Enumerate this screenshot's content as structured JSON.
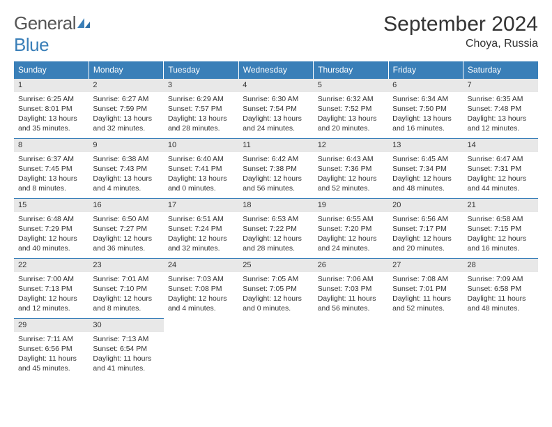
{
  "logo": {
    "general": "General",
    "blue": "Blue"
  },
  "header": {
    "title": "September 2024",
    "location": "Choya, Russia"
  },
  "colors": {
    "brand": "#3a7fb8",
    "header_bg": "#3a7fb8",
    "header_text": "#ffffff",
    "daynum_bg": "#e8e8e8",
    "text": "#333333",
    "row_border": "#3a7fb8",
    "background": "#ffffff"
  },
  "weekdays": [
    "Sunday",
    "Monday",
    "Tuesday",
    "Wednesday",
    "Thursday",
    "Friday",
    "Saturday"
  ],
  "weeks": [
    [
      {
        "n": "1",
        "sr": "Sunrise: 6:25 AM",
        "ss": "Sunset: 8:01 PM",
        "dl": "Daylight: 13 hours and 35 minutes."
      },
      {
        "n": "2",
        "sr": "Sunrise: 6:27 AM",
        "ss": "Sunset: 7:59 PM",
        "dl": "Daylight: 13 hours and 32 minutes."
      },
      {
        "n": "3",
        "sr": "Sunrise: 6:29 AM",
        "ss": "Sunset: 7:57 PM",
        "dl": "Daylight: 13 hours and 28 minutes."
      },
      {
        "n": "4",
        "sr": "Sunrise: 6:30 AM",
        "ss": "Sunset: 7:54 PM",
        "dl": "Daylight: 13 hours and 24 minutes."
      },
      {
        "n": "5",
        "sr": "Sunrise: 6:32 AM",
        "ss": "Sunset: 7:52 PM",
        "dl": "Daylight: 13 hours and 20 minutes."
      },
      {
        "n": "6",
        "sr": "Sunrise: 6:34 AM",
        "ss": "Sunset: 7:50 PM",
        "dl": "Daylight: 13 hours and 16 minutes."
      },
      {
        "n": "7",
        "sr": "Sunrise: 6:35 AM",
        "ss": "Sunset: 7:48 PM",
        "dl": "Daylight: 13 hours and 12 minutes."
      }
    ],
    [
      {
        "n": "8",
        "sr": "Sunrise: 6:37 AM",
        "ss": "Sunset: 7:45 PM",
        "dl": "Daylight: 13 hours and 8 minutes."
      },
      {
        "n": "9",
        "sr": "Sunrise: 6:38 AM",
        "ss": "Sunset: 7:43 PM",
        "dl": "Daylight: 13 hours and 4 minutes."
      },
      {
        "n": "10",
        "sr": "Sunrise: 6:40 AM",
        "ss": "Sunset: 7:41 PM",
        "dl": "Daylight: 13 hours and 0 minutes."
      },
      {
        "n": "11",
        "sr": "Sunrise: 6:42 AM",
        "ss": "Sunset: 7:38 PM",
        "dl": "Daylight: 12 hours and 56 minutes."
      },
      {
        "n": "12",
        "sr": "Sunrise: 6:43 AM",
        "ss": "Sunset: 7:36 PM",
        "dl": "Daylight: 12 hours and 52 minutes."
      },
      {
        "n": "13",
        "sr": "Sunrise: 6:45 AM",
        "ss": "Sunset: 7:34 PM",
        "dl": "Daylight: 12 hours and 48 minutes."
      },
      {
        "n": "14",
        "sr": "Sunrise: 6:47 AM",
        "ss": "Sunset: 7:31 PM",
        "dl": "Daylight: 12 hours and 44 minutes."
      }
    ],
    [
      {
        "n": "15",
        "sr": "Sunrise: 6:48 AM",
        "ss": "Sunset: 7:29 PM",
        "dl": "Daylight: 12 hours and 40 minutes."
      },
      {
        "n": "16",
        "sr": "Sunrise: 6:50 AM",
        "ss": "Sunset: 7:27 PM",
        "dl": "Daylight: 12 hours and 36 minutes."
      },
      {
        "n": "17",
        "sr": "Sunrise: 6:51 AM",
        "ss": "Sunset: 7:24 PM",
        "dl": "Daylight: 12 hours and 32 minutes."
      },
      {
        "n": "18",
        "sr": "Sunrise: 6:53 AM",
        "ss": "Sunset: 7:22 PM",
        "dl": "Daylight: 12 hours and 28 minutes."
      },
      {
        "n": "19",
        "sr": "Sunrise: 6:55 AM",
        "ss": "Sunset: 7:20 PM",
        "dl": "Daylight: 12 hours and 24 minutes."
      },
      {
        "n": "20",
        "sr": "Sunrise: 6:56 AM",
        "ss": "Sunset: 7:17 PM",
        "dl": "Daylight: 12 hours and 20 minutes."
      },
      {
        "n": "21",
        "sr": "Sunrise: 6:58 AM",
        "ss": "Sunset: 7:15 PM",
        "dl": "Daylight: 12 hours and 16 minutes."
      }
    ],
    [
      {
        "n": "22",
        "sr": "Sunrise: 7:00 AM",
        "ss": "Sunset: 7:13 PM",
        "dl": "Daylight: 12 hours and 12 minutes."
      },
      {
        "n": "23",
        "sr": "Sunrise: 7:01 AM",
        "ss": "Sunset: 7:10 PM",
        "dl": "Daylight: 12 hours and 8 minutes."
      },
      {
        "n": "24",
        "sr": "Sunrise: 7:03 AM",
        "ss": "Sunset: 7:08 PM",
        "dl": "Daylight: 12 hours and 4 minutes."
      },
      {
        "n": "25",
        "sr": "Sunrise: 7:05 AM",
        "ss": "Sunset: 7:05 PM",
        "dl": "Daylight: 12 hours and 0 minutes."
      },
      {
        "n": "26",
        "sr": "Sunrise: 7:06 AM",
        "ss": "Sunset: 7:03 PM",
        "dl": "Daylight: 11 hours and 56 minutes."
      },
      {
        "n": "27",
        "sr": "Sunrise: 7:08 AM",
        "ss": "Sunset: 7:01 PM",
        "dl": "Daylight: 11 hours and 52 minutes."
      },
      {
        "n": "28",
        "sr": "Sunrise: 7:09 AM",
        "ss": "Sunset: 6:58 PM",
        "dl": "Daylight: 11 hours and 48 minutes."
      }
    ],
    [
      {
        "n": "29",
        "sr": "Sunrise: 7:11 AM",
        "ss": "Sunset: 6:56 PM",
        "dl": "Daylight: 11 hours and 45 minutes."
      },
      {
        "n": "30",
        "sr": "Sunrise: 7:13 AM",
        "ss": "Sunset: 6:54 PM",
        "dl": "Daylight: 11 hours and 41 minutes."
      },
      null,
      null,
      null,
      null,
      null
    ]
  ]
}
